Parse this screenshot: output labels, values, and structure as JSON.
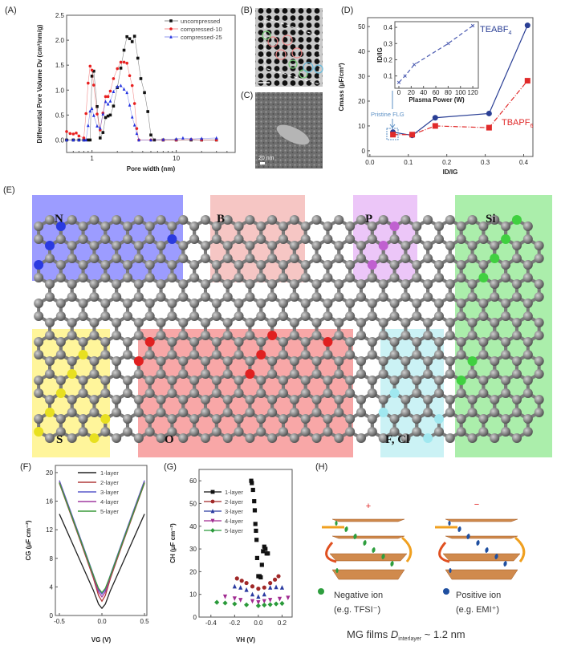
{
  "panel_labels": {
    "A": "(A)",
    "B": "(B)",
    "C": "(C)",
    "D": "(D)",
    "E": "(E)",
    "F": "(F)",
    "G": "(G)",
    "H": "(H)"
  },
  "panel_c": {
    "scale_bar": "20 nm"
  },
  "panel_e": {
    "regions": [
      {
        "label": "N",
        "color": "#7b7bff"
      },
      {
        "label": "B",
        "color": "#f3b3b0"
      },
      {
        "label": "P",
        "color": "#e6b3f5"
      },
      {
        "label": "Si",
        "color": "#8fe88f"
      },
      {
        "label": "S",
        "color": "#fff27a"
      },
      {
        "label": "O",
        "color": "#f58a8a"
      },
      {
        "label": "F, Cl",
        "color": "#b9eef2"
      }
    ]
  },
  "panel_h": {
    "positive_sign": "+",
    "negative_sign": "−",
    "negative_ion": "Negative ion",
    "negative_example": "(e.g. TFSI⁻)",
    "positive_ion": "Positive ion",
    "positive_example": "(e.g. EMI⁺)",
    "caption_prefix": "MG films ",
    "caption_d": "D",
    "caption_sub": "interlayer",
    "caption_suffix": " ~ 1.2 nm",
    "negative_color": "#2e9e3e",
    "positive_color": "#1f4fa0",
    "sheet_color": "#c8762e"
  },
  "chart_data": [
    {
      "id": "A",
      "type": "line",
      "xscale": "log",
      "xlabel": "Pore width (nm)",
      "ylabel": "Differential Pore Volume Dv (cm³/nm/g)",
      "xlim": [
        0.5,
        50
      ],
      "ylim": [
        -0.25,
        2.5
      ],
      "xticks": [
        "1",
        "10"
      ],
      "yticks": [
        "0.0",
        "0.5",
        "1.0",
        "1.5",
        "2.0",
        "2.5"
      ],
      "legend": "top-right",
      "series": [
        {
          "name": "uncompressed",
          "color": "#111111",
          "marker": "square",
          "x": [
            0.5,
            0.6,
            0.7,
            0.8,
            0.9,
            0.95,
            1.0,
            1.05,
            1.15,
            1.25,
            1.35,
            1.45,
            1.55,
            1.65,
            1.8,
            2.0,
            2.2,
            2.4,
            2.6,
            2.8,
            3.0,
            3.2,
            3.5,
            3.8,
            4.2,
            4.6,
            5.0,
            5.5,
            7,
            10,
            15,
            20,
            30
          ],
          "y": [
            0,
            0,
            0,
            0,
            0,
            0,
            1.28,
            1.38,
            0.67,
            0.04,
            0.15,
            0.45,
            0.48,
            0.5,
            0.68,
            1.05,
            1.44,
            1.8,
            2.07,
            2.03,
            1.97,
            2.08,
            1.64,
            1.23,
            0.95,
            0.57,
            0.1,
            0,
            0,
            0,
            0,
            0,
            0
          ]
        },
        {
          "name": "compressed-10",
          "color": "#e82020",
          "marker": "circle",
          "x": [
            0.5,
            0.55,
            0.6,
            0.65,
            0.7,
            0.8,
            0.85,
            0.9,
            0.95,
            1.0,
            1.05,
            1.15,
            1.25,
            1.35,
            1.45,
            1.55,
            1.65,
            1.8,
            2.0,
            2.2,
            2.4,
            2.6,
            2.8,
            3.0,
            3.2,
            3.4,
            3.6,
            5,
            7,
            10,
            15,
            20,
            30
          ],
          "y": [
            0.17,
            0.13,
            0.12,
            0.14,
            0.08,
            0.04,
            0.53,
            1.14,
            1.48,
            1.4,
            1.1,
            0.52,
            0.2,
            0.54,
            0.87,
            0.87,
            0.98,
            1.23,
            1.43,
            1.56,
            1.56,
            1.54,
            1.29,
            1.09,
            0.73,
            0.23,
            0,
            0,
            0,
            0,
            0.01,
            0,
            0
          ]
        },
        {
          "name": "compressed-25",
          "color": "#2030e0",
          "marker": "triangle",
          "x": [
            0.5,
            0.6,
            0.7,
            0.8,
            0.85,
            0.9,
            0.95,
            1.0,
            1.05,
            1.15,
            1.25,
            1.35,
            1.45,
            1.55,
            1.65,
            1.8,
            2.0,
            2.2,
            2.4,
            2.6,
            2.8,
            3.0,
            3.2,
            3.4,
            3.6,
            5,
            7,
            10,
            12,
            15,
            20,
            30
          ],
          "y": [
            0,
            0,
            0,
            0,
            0,
            0.29,
            0.58,
            0.63,
            0.49,
            0.28,
            0.24,
            0.52,
            0.77,
            0.72,
            0.78,
            0.97,
            1.07,
            1.09,
            1.02,
            0.95,
            0.7,
            0.46,
            0.3,
            0.13,
            0,
            0,
            0.01,
            0.02,
            0.04,
            0.02,
            0.03,
            0.04
          ]
        }
      ]
    },
    {
      "id": "D",
      "type": "line",
      "xlabel": "ID/IG",
      "ylabel": "Cmass (μF/cm²)",
      "xlim": [
        -0.006,
        0.424
      ],
      "ylim": [
        -2.3,
        53.6
      ],
      "xticks": [
        "0.0",
        "0.1",
        "0.2",
        "0.3",
        "0.4"
      ],
      "yticks": [
        "0",
        "10",
        "20",
        "30",
        "40",
        "50"
      ],
      "annotation": "Pristine FLG",
      "series": [
        {
          "name": "TEABF4",
          "label_main": "TEABF",
          "label_sub": "4",
          "color": "#2a3f95",
          "marker": "circle",
          "dash": "",
          "x": [
            0.06,
            0.11,
            0.17,
            0.31,
            0.41
          ],
          "y": [
            7.5,
            6.2,
            13.3,
            15,
            50.5
          ]
        },
        {
          "name": "TBAPF6",
          "label_main": "TBAPF",
          "label_sub": "6",
          "color": "#e02a2a",
          "marker": "square",
          "dash": "6 2 1 2",
          "x": [
            0.06,
            0.11,
            0.17,
            0.31,
            0.41
          ],
          "y": [
            6.5,
            6.5,
            10,
            9.3,
            28.2
          ]
        }
      ]
    },
    {
      "id": "D-inset",
      "type": "line",
      "xlabel": "Plasma Power (W)",
      "ylabel": "ID/IG",
      "xlim": [
        -6.5,
        129
      ],
      "ylim": [
        0.024,
        0.435
      ],
      "xticks": [
        "0",
        "20",
        "40",
        "60",
        "80",
        "100",
        "120"
      ],
      "yticks": [
        "0.1",
        "0.2",
        "0.3",
        "0.4"
      ],
      "series": [
        {
          "color": "#4a5ab0",
          "marker": "cross",
          "dash": "5 3",
          "x": [
            0,
            10,
            25,
            80,
            120
          ],
          "y": [
            0.06,
            0.1,
            0.17,
            0.3,
            0.41
          ]
        }
      ]
    },
    {
      "id": "F",
      "type": "line",
      "xlabel": "VG (V)",
      "ylabel": "CG (μF cm⁻²)",
      "xlim": [
        -0.547,
        0.528
      ],
      "ylim": [
        0,
        21
      ],
      "xticks": [
        "-0.5",
        "0.0",
        "0.5"
      ],
      "yticks": [
        "0",
        "4",
        "8",
        "12",
        "16",
        "20"
      ],
      "legend": "top-center",
      "series": [
        {
          "name": "1-layer",
          "color": "#222222",
          "x": [
            -0.5,
            -0.25,
            -0.1,
            -0.04,
            0,
            0.04,
            0.1,
            0.25,
            0.5
          ],
          "y": [
            14.2,
            7.5,
            3.5,
            1.6,
            1.0,
            1.6,
            3.5,
            7.5,
            14.2
          ]
        },
        {
          "name": "2-layer",
          "color": "#b03a3a",
          "x": [
            -0.5,
            -0.25,
            -0.1,
            -0.04,
            0,
            0.04,
            0.1,
            0.25,
            0.5
          ],
          "y": [
            18.5,
            10.3,
            5.2,
            2.8,
            2.0,
            2.8,
            5.2,
            10.3,
            18.5
          ]
        },
        {
          "name": "3-layer",
          "color": "#5a5acc",
          "x": [
            -0.5,
            -0.25,
            -0.1,
            -0.04,
            0,
            0.04,
            0.1,
            0.25,
            0.5
          ],
          "y": [
            18.9,
            10.7,
            5.7,
            3.6,
            3.0,
            3.6,
            5.7,
            10.7,
            18.9
          ]
        },
        {
          "name": "4-layer",
          "color": "#a03aa0",
          "x": [
            -0.5,
            -0.25,
            -0.1,
            -0.04,
            0,
            0.04,
            0.1,
            0.25,
            0.5
          ],
          "y": [
            18.7,
            10.5,
            5.5,
            3.3,
            2.6,
            3.3,
            5.5,
            10.5,
            18.7
          ]
        },
        {
          "name": "5-layer",
          "color": "#3a9a3a",
          "x": [
            -0.5,
            -0.25,
            -0.1,
            -0.04,
            0,
            0.04,
            0.1,
            0.25,
            0.5
          ],
          "y": [
            18.6,
            10.5,
            5.6,
            3.8,
            3.2,
            3.8,
            5.6,
            10.5,
            18.6
          ]
        }
      ]
    },
    {
      "id": "G",
      "type": "scatter",
      "xlabel": "VH (V)",
      "ylabel": "CH (μF cm⁻²)",
      "xlim": [
        -0.5,
        0.285
      ],
      "ylim": [
        0,
        65
      ],
      "xticks": [
        "-0.4",
        "-0.2",
        "0.0",
        "0.2"
      ],
      "yticks": [
        "0",
        "10",
        "20",
        "30",
        "40",
        "50",
        "60"
      ],
      "legend": "top-left",
      "series": [
        {
          "name": "1-layer",
          "color": "#111111",
          "marker": "square",
          "x": [
            -0.06,
            -0.055,
            -0.045,
            -0.035,
            -0.03,
            -0.025,
            -0.02,
            -0.015,
            -0.01,
            0,
            0.01,
            0.02,
            0.03,
            0.04,
            0.05,
            0.06,
            0.07,
            0.08
          ],
          "y": [
            60,
            59,
            56,
            51,
            47,
            41,
            38,
            34,
            26,
            18,
            18,
            17.5,
            23,
            29,
            31,
            30,
            28,
            28
          ]
        },
        {
          "name": "2-layer",
          "color": "#a02828",
          "marker": "circle",
          "x": [
            -0.18,
            -0.14,
            -0.1,
            -0.05,
            0,
            0.05,
            0.1,
            0.14,
            0.17
          ],
          "y": [
            17,
            16,
            15,
            13.5,
            12.5,
            13,
            15,
            16.5,
            18
          ]
        },
        {
          "name": "3-layer",
          "color": "#2a3aa0",
          "marker": "triangle",
          "x": [
            -0.2,
            -0.15,
            -0.1,
            -0.05,
            0,
            0.05,
            0.1,
            0.15,
            0.2
          ],
          "y": [
            13.5,
            13,
            12,
            10,
            9,
            10,
            13,
            13.2,
            13
          ]
        },
        {
          "name": "4-layer",
          "color": "#a02a90",
          "marker": "triangle-down",
          "x": [
            -0.28,
            -0.2,
            -0.15,
            -0.05,
            0,
            0.05,
            0.1,
            0.18,
            0.25
          ],
          "y": [
            9,
            8.2,
            7.5,
            7,
            6.5,
            7,
            7.5,
            8,
            8.5
          ]
        },
        {
          "name": "5-layer",
          "color": "#2a9a3a",
          "marker": "diamond",
          "x": [
            -0.35,
            -0.28,
            -0.2,
            -0.1,
            0,
            0.05,
            0.1,
            0.15,
            0.2
          ],
          "y": [
            6.5,
            6.2,
            5.8,
            5.4,
            5,
            5.3,
            5.5,
            5.8,
            6
          ]
        }
      ]
    }
  ]
}
